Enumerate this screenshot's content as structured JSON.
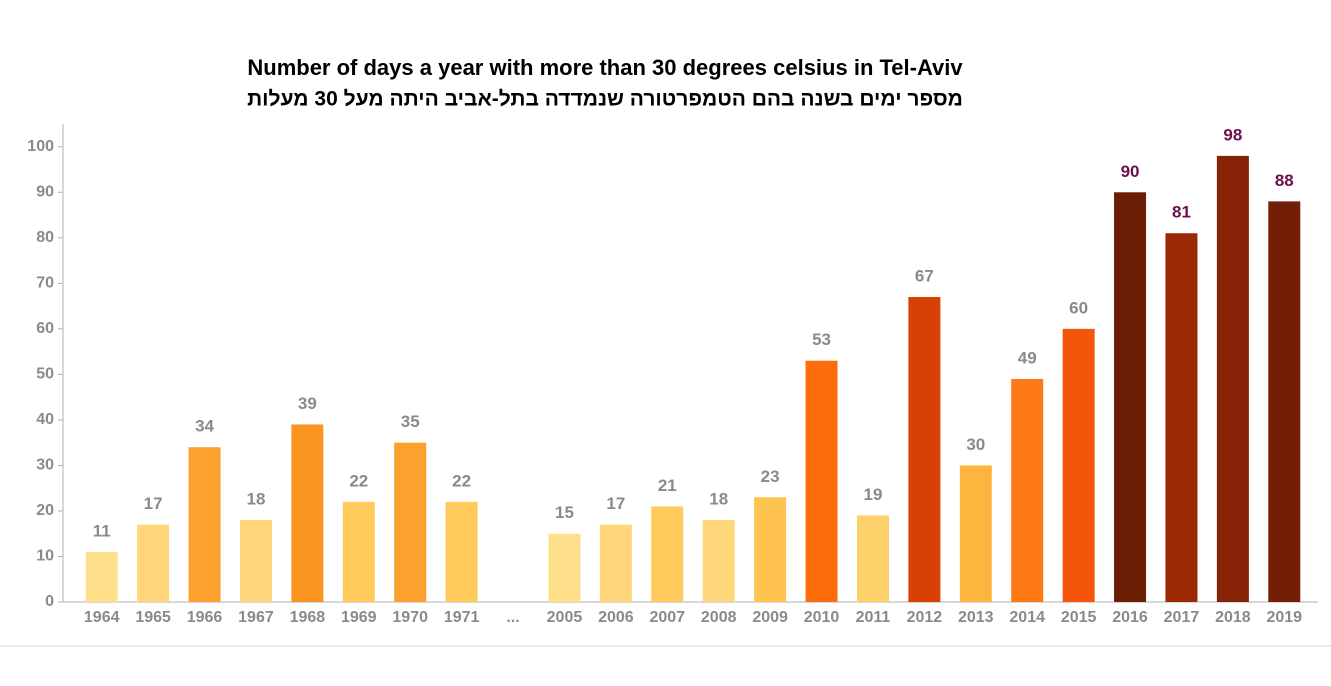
{
  "chart_data": {
    "type": "bar",
    "title": "Number of days a year with more than 30 degrees celsius in Tel-Aviv",
    "subtitle": "מספר ימים בשנה בהם הטמפרטורה שנמדדה בתל-אביב היתה מעל 30 מעלות",
    "categories": [
      "1964",
      "1965",
      "1966",
      "1967",
      "1968",
      "1969",
      "1970",
      "1971",
      "...",
      "2005",
      "2006",
      "2007",
      "2008",
      "2009",
      "2010",
      "2011",
      "2012",
      "2013",
      "2014",
      "2015",
      "2016",
      "2017",
      "2018",
      "2019"
    ],
    "values": [
      11,
      17,
      34,
      18,
      39,
      22,
      35,
      22,
      null,
      15,
      17,
      21,
      18,
      23,
      53,
      19,
      67,
      30,
      49,
      60,
      90,
      81,
      98,
      88
    ],
    "colors": [
      "#ffe08a",
      "#ffd77a",
      "#fba22e",
      "#ffd77a",
      "#fb9420",
      "#fecb5c",
      "#fba22e",
      "#fecb5c",
      null,
      "#ffe08a",
      "#ffd77a",
      "#fecb5c",
      "#ffd77a",
      "#fec44f",
      "#fe6d0c",
      "#ffd16a",
      "#d94104",
      "#feb53d",
      "#fe7a14",
      "#f5550a",
      "#6b1e04",
      "#9a2803",
      "#862205",
      "#731f05"
    ],
    "value_label_colors": [
      "#8a8a8a",
      "#8a8a8a",
      "#8a8a8a",
      "#8a8a8a",
      "#8a8a8a",
      "#8a8a8a",
      "#8a8a8a",
      "#8a8a8a",
      null,
      "#8a8a8a",
      "#8a8a8a",
      "#8a8a8a",
      "#8a8a8a",
      "#8a8a8a",
      "#8a8a8a",
      "#8a8a8a",
      "#8a8a8a",
      "#8a8a8a",
      "#8a8a8a",
      "#8a8a8a",
      "#6b0f4f",
      "#6b0f4f",
      "#6b0f4f",
      "#6b0f4f"
    ],
    "ylim": [
      0,
      105
    ],
    "yticks": [
      0,
      10,
      20,
      30,
      40,
      50,
      60,
      70,
      80,
      90,
      100
    ],
    "grid": false
  }
}
